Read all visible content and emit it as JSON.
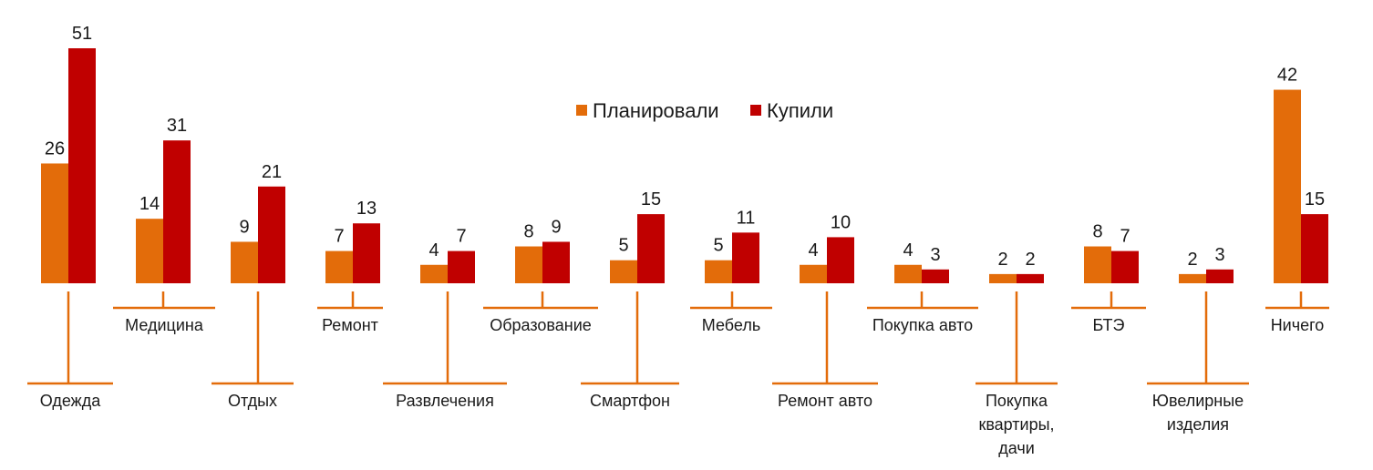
{
  "chart_data": {
    "type": "bar",
    "categories": [
      [
        "Одежда"
      ],
      [
        "Медицина"
      ],
      [
        "Отдых"
      ],
      [
        "Ремонт"
      ],
      [
        "Развлечения"
      ],
      [
        "Образование"
      ],
      [
        "Смартфон"
      ],
      [
        "Мебель"
      ],
      [
        "Ремонт авто"
      ],
      [
        "Покупка авто"
      ],
      [
        "Покупка",
        "квартиры,",
        "дачи"
      ],
      [
        "БТЭ"
      ],
      [
        "Ювелирные",
        "изделия"
      ],
      [
        "Ничего"
      ]
    ],
    "series": [
      {
        "name": "Планировали",
        "color": "#e36c0a",
        "values": [
          26,
          14,
          9,
          7,
          4,
          8,
          5,
          5,
          4,
          4,
          2,
          8,
          2,
          42
        ]
      },
      {
        "name": "Купили",
        "color": "#c00000",
        "values": [
          51,
          31,
          21,
          13,
          7,
          9,
          15,
          11,
          10,
          3,
          2,
          7,
          3,
          15
        ]
      }
    ],
    "ylim": [
      0,
      51
    ],
    "legend": "top-center",
    "grid": false,
    "leader_color": "#e36c0a"
  }
}
